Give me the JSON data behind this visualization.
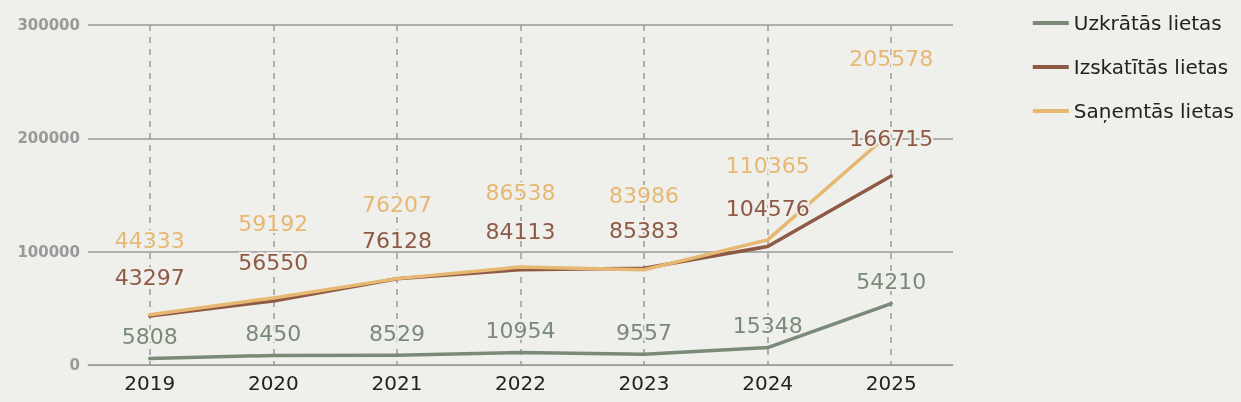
{
  "chart_data": {
    "type": "line",
    "categories": [
      "2019",
      "2020",
      "2021",
      "2022",
      "2023",
      "2024",
      "2025"
    ],
    "series": [
      {
        "name": "Uzkrātās lietas",
        "color": "#7a8a78",
        "values": [
          5808,
          8450,
          8529,
          10954,
          9557,
          15348,
          54210
        ]
      },
      {
        "name": "Izskatītās lietas",
        "color": "#8f5a45",
        "values": [
          43297,
          56550,
          76128,
          84113,
          85383,
          104576,
          166715
        ]
      },
      {
        "name": "Saņemtās lietas",
        "color": "#e6b872",
        "values": [
          44333,
          59192,
          76207,
          86538,
          83986,
          110365,
          205578
        ]
      }
    ],
    "ylim": [
      0,
      300000
    ],
    "yticks": [
      0,
      100000,
      200000,
      300000
    ],
    "grid": true,
    "legend": "right",
    "data_labels": true,
    "marker": "none",
    "line_style": "solid"
  }
}
